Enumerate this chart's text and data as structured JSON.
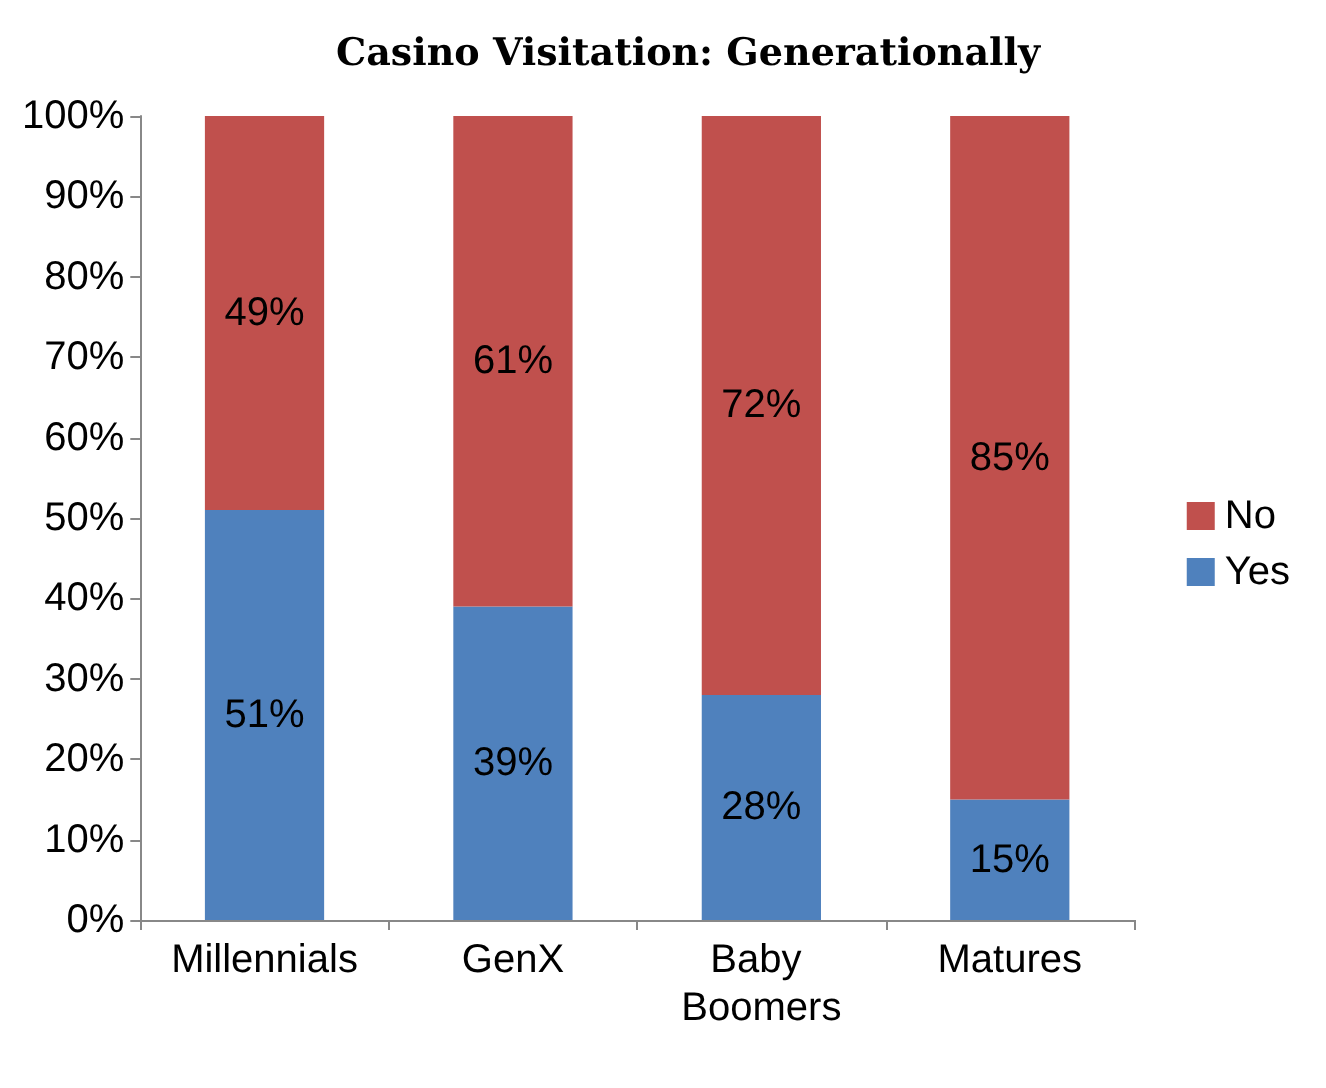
{
  "chart_data": {
    "type": "bar",
    "title": "Casino Visitation: Generationally",
    "stacked": true,
    "categories": [
      "Millennials",
      "GenX",
      "Baby Boomers",
      "Matures"
    ],
    "series": [
      {
        "name": "Yes",
        "color": "#4f81bd",
        "values": [
          51,
          39,
          28,
          15
        ],
        "value_labels": [
          "51%",
          "39%",
          "28%",
          "15%"
        ]
      },
      {
        "name": "No",
        "color": "#c0504d",
        "values": [
          49,
          61,
          72,
          85
        ],
        "value_labels": [
          "49%",
          "61%",
          "72%",
          "85%"
        ]
      }
    ],
    "ylim": [
      0,
      100
    ],
    "yticks": [
      {
        "value": 0,
        "label": "0%"
      },
      {
        "value": 10,
        "label": "10%"
      },
      {
        "value": 20,
        "label": "20%"
      },
      {
        "value": 30,
        "label": "30%"
      },
      {
        "value": 40,
        "label": "40%"
      },
      {
        "value": 50,
        "label": "50%"
      },
      {
        "value": 60,
        "label": "60%"
      },
      {
        "value": 70,
        "label": "70%"
      },
      {
        "value": 80,
        "label": "80%"
      },
      {
        "value": 90,
        "label": "90%"
      },
      {
        "value": 100,
        "label": "100%"
      }
    ],
    "grid": false,
    "legend": "right"
  }
}
